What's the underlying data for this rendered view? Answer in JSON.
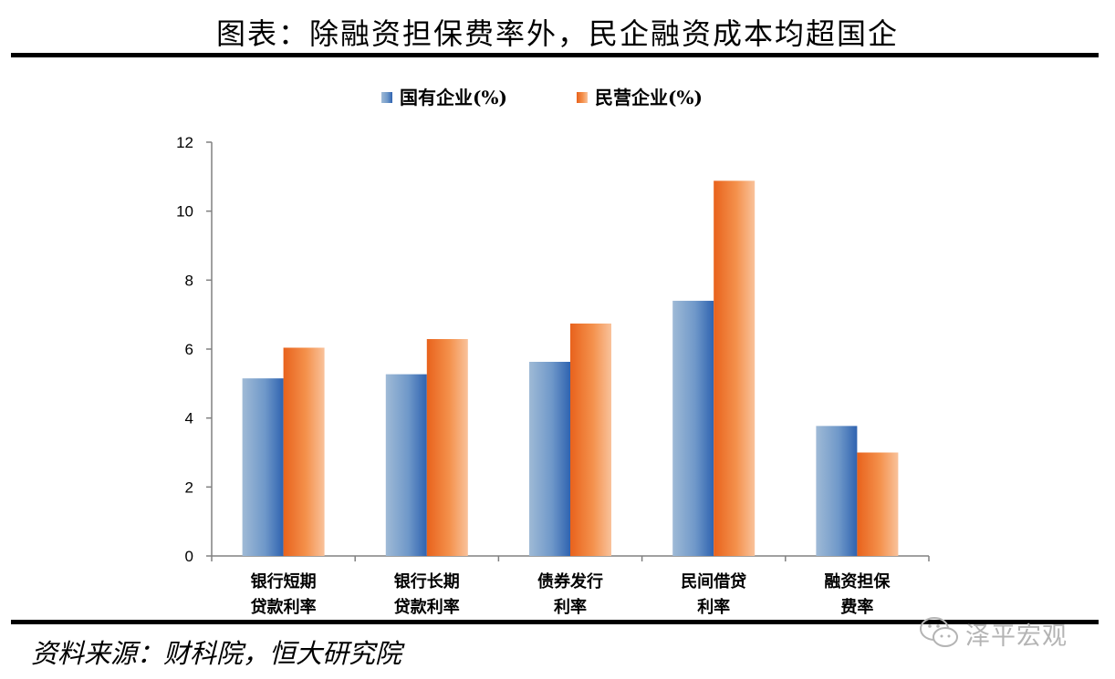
{
  "page": {
    "title": "图表：除融资担保费率外，民企融资成本均超国企",
    "source": "资料来源：财科院，恒大研究院",
    "watermark": "泽平宏观"
  },
  "chart_data": {
    "type": "bar",
    "title": "图表：除融资担保费率外，民企融资成本均超国企",
    "categories": [
      [
        "银行短期",
        "贷款利率"
      ],
      [
        "银行长期",
        "贷款利率"
      ],
      [
        "债券发行",
        "利率"
      ],
      [
        "民间借贷",
        "利率"
      ],
      [
        "融资担保",
        "费率"
      ]
    ],
    "series": [
      {
        "name": "国有企业(%)",
        "values": [
          5.15,
          5.27,
          5.63,
          7.4,
          3.77
        ],
        "color": "#4a7fc1"
      },
      {
        "name": "民营企业(%)",
        "values": [
          6.04,
          6.29,
          6.74,
          10.88,
          3.0
        ],
        "color": "#f28a3a"
      }
    ],
    "ylim": [
      0,
      12
    ],
    "yticks": [
      0,
      2,
      4,
      6,
      8,
      10,
      12
    ],
    "legend_position": "top",
    "grid": false
  }
}
